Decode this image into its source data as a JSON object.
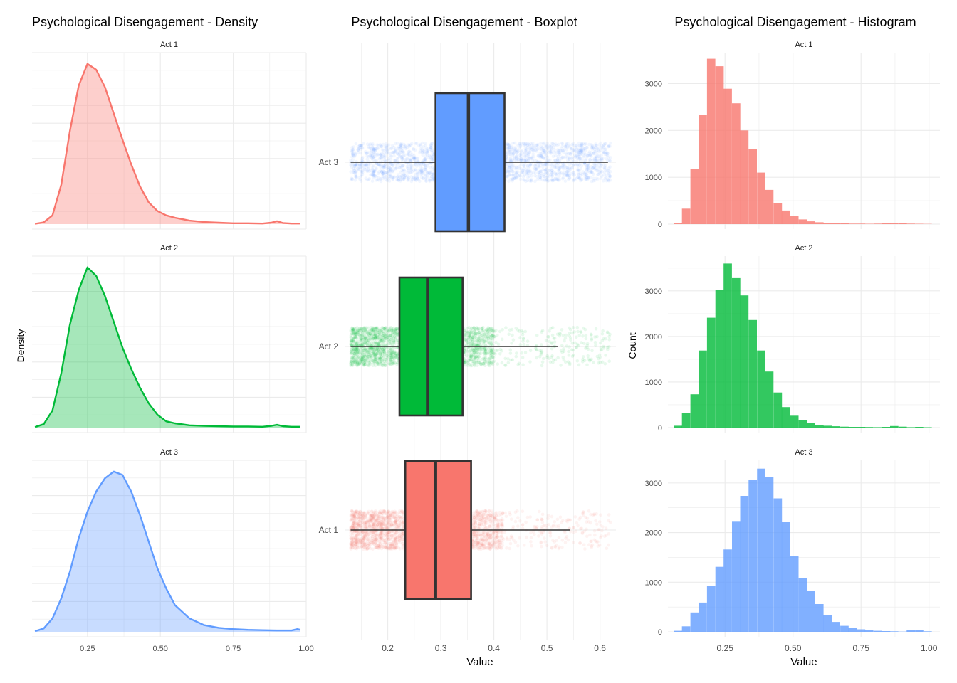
{
  "colors": {
    "act1": "#F8766D",
    "act2": "#00BA38",
    "act3": "#619CFF",
    "grid": "#EBEBEB",
    "text": "#000000",
    "tick_text": "#4D4D4D",
    "box_outline": "#333333"
  },
  "chart_data": [
    {
      "type": "area",
      "title": "Psychological Disengagement - Density",
      "xlabel": "",
      "ylabel": "Density",
      "xlim": [
        0.06,
        1.0
      ],
      "x_ticks": [
        0.25,
        0.5,
        0.75,
        1.0
      ],
      "x_tick_labels": [
        "0.25",
        "0.50",
        "0.75",
        "1.00"
      ],
      "y_tick_labels_shown": false,
      "facets": [
        {
          "label": "Act 1",
          "color_key": "act1",
          "x": [
            0.07,
            0.1,
            0.13,
            0.16,
            0.19,
            0.22,
            0.25,
            0.28,
            0.31,
            0.34,
            0.37,
            0.4,
            0.43,
            0.46,
            0.49,
            0.52,
            0.55,
            0.6,
            0.65,
            0.7,
            0.75,
            0.8,
            0.85,
            0.88,
            0.9,
            0.92,
            0.95,
            0.98
          ],
          "y": [
            0.01,
            0.06,
            0.3,
            1.35,
            3.2,
            4.75,
            5.5,
            5.3,
            4.7,
            3.8,
            2.9,
            2.05,
            1.3,
            0.75,
            0.45,
            0.3,
            0.22,
            0.12,
            0.07,
            0.05,
            0.03,
            0.03,
            0.02,
            0.05,
            0.1,
            0.04,
            0.02,
            0.02
          ]
        },
        {
          "label": "Act 2",
          "color_key": "act2",
          "x": [
            0.07,
            0.1,
            0.13,
            0.16,
            0.19,
            0.22,
            0.25,
            0.28,
            0.31,
            0.34,
            0.37,
            0.4,
            0.43,
            0.46,
            0.49,
            0.52,
            0.55,
            0.6,
            0.65,
            0.7,
            0.75,
            0.8,
            0.85,
            0.88,
            0.9,
            0.92,
            0.95,
            0.98
          ],
          "y": [
            0.02,
            0.12,
            0.6,
            1.9,
            3.6,
            4.8,
            5.6,
            5.3,
            4.6,
            3.7,
            2.8,
            2.05,
            1.4,
            0.85,
            0.45,
            0.22,
            0.15,
            0.08,
            0.06,
            0.05,
            0.04,
            0.04,
            0.03,
            0.06,
            0.1,
            0.05,
            0.03,
            0.03
          ]
        },
        {
          "label": "Act 3",
          "color_key": "act3",
          "x": [
            0.07,
            0.1,
            0.13,
            0.16,
            0.19,
            0.22,
            0.25,
            0.28,
            0.31,
            0.34,
            0.37,
            0.4,
            0.43,
            0.46,
            0.49,
            0.52,
            0.55,
            0.6,
            0.65,
            0.7,
            0.75,
            0.8,
            0.85,
            0.9,
            0.95,
            0.97,
            0.98
          ],
          "y": [
            0.02,
            0.1,
            0.4,
            1.0,
            1.8,
            2.8,
            3.6,
            4.2,
            4.6,
            4.8,
            4.7,
            4.2,
            3.5,
            2.7,
            1.9,
            1.3,
            0.8,
            0.4,
            0.2,
            0.12,
            0.08,
            0.06,
            0.05,
            0.04,
            0.04,
            0.08,
            0.06
          ]
        }
      ]
    },
    {
      "type": "boxplot",
      "title": "Psychological Disengagement - Boxplot",
      "xlabel": "Value",
      "ylabel": "",
      "xlim": [
        0.12,
        0.63
      ],
      "x_ticks": [
        0.2,
        0.3,
        0.4,
        0.5,
        0.6
      ],
      "x_tick_labels": [
        "0.2",
        "0.3",
        "0.4",
        "0.5",
        "0.6"
      ],
      "categories": [
        "Act 3",
        "Act 2",
        "Act 1"
      ],
      "boxes": [
        {
          "label": "Act 3",
          "color_key": "act3",
          "whisker_low": 0.13,
          "q1": 0.29,
          "median": 0.352,
          "q3": 0.42,
          "whisker_high": 0.615,
          "jitter_low": 0.13,
          "jitter_high": 0.62,
          "jitter_density": "uniform"
        },
        {
          "label": "Act 2",
          "color_key": "act2",
          "whisker_low": 0.13,
          "q1": 0.222,
          "median": 0.275,
          "q3": 0.341,
          "whisker_high": 0.52,
          "jitter_low": 0.13,
          "jitter_high": 0.62,
          "jitter_density": "skewed"
        },
        {
          "label": "Act 1",
          "color_key": "act1",
          "whisker_low": 0.13,
          "q1": 0.233,
          "median": 0.29,
          "q3": 0.357,
          "whisker_high": 0.543,
          "jitter_low": 0.13,
          "jitter_high": 0.62,
          "jitter_density": "skewed"
        }
      ]
    },
    {
      "type": "bar",
      "title": "Psychological Disengagement - Histogram",
      "xlabel": "Value",
      "ylabel": "Count",
      "xlim": [
        0.0,
        1.05
      ],
      "x_ticks": [
        0.25,
        0.5,
        0.75,
        1.0
      ],
      "x_tick_labels": [
        "0.25",
        "0.50",
        "0.75",
        "1.00"
      ],
      "bin_width": 0.0306,
      "facets": [
        {
          "label": "Act 1",
          "color_key": "act1",
          "ylim": [
            0,
            3600
          ],
          "y_ticks": [
            0,
            1000,
            2000,
            3000
          ],
          "y_tick_labels": [
            "0",
            "1000",
            "2000",
            "3000"
          ],
          "bin_centers": [
            0.077,
            0.107,
            0.138,
            0.168,
            0.199,
            0.23,
            0.26,
            0.291,
            0.321,
            0.352,
            0.383,
            0.413,
            0.444,
            0.474,
            0.505,
            0.536,
            0.566,
            0.597,
            0.627,
            0.658,
            0.689,
            0.719,
            0.75,
            0.78,
            0.811,
            0.842,
            0.872,
            0.903,
            0.933,
            0.964,
            0.995
          ],
          "counts": [
            20,
            330,
            1180,
            2330,
            3530,
            3370,
            2890,
            2580,
            2000,
            1610,
            1100,
            730,
            450,
            290,
            170,
            100,
            60,
            40,
            30,
            20,
            15,
            10,
            10,
            8,
            10,
            15,
            30,
            20,
            10,
            8,
            5
          ]
        },
        {
          "label": "Act 2",
          "color_key": "act2",
          "ylim": [
            0,
            3700
          ],
          "y_ticks": [
            0,
            1000,
            2000,
            3000
          ],
          "y_tick_labels": [
            "0",
            "1000",
            "2000",
            "3000"
          ],
          "bin_centers": [
            0.077,
            0.107,
            0.138,
            0.168,
            0.199,
            0.23,
            0.26,
            0.291,
            0.321,
            0.352,
            0.383,
            0.413,
            0.444,
            0.474,
            0.505,
            0.536,
            0.566,
            0.597,
            0.627,
            0.658,
            0.689,
            0.719,
            0.75,
            0.78,
            0.811,
            0.842,
            0.872,
            0.903,
            0.933,
            0.964,
            0.995
          ],
          "counts": [
            40,
            320,
            730,
            1690,
            2410,
            3020,
            3600,
            3280,
            2900,
            2360,
            1690,
            1230,
            770,
            450,
            260,
            170,
            100,
            60,
            40,
            30,
            20,
            15,
            15,
            12,
            10,
            15,
            35,
            20,
            10,
            15,
            8
          ]
        },
        {
          "label": "Act 3",
          "color_key": "act3",
          "ylim": [
            0,
            3400
          ],
          "y_ticks": [
            0,
            1000,
            2000,
            3000
          ],
          "y_tick_labels": [
            "0",
            "1000",
            "2000",
            "3000"
          ],
          "bin_centers": [
            0.077,
            0.107,
            0.138,
            0.168,
            0.199,
            0.23,
            0.26,
            0.291,
            0.321,
            0.352,
            0.383,
            0.413,
            0.444,
            0.474,
            0.505,
            0.536,
            0.566,
            0.597,
            0.627,
            0.658,
            0.689,
            0.719,
            0.75,
            0.78,
            0.811,
            0.842,
            0.872,
            0.903,
            0.933,
            0.964,
            0.995
          ],
          "counts": [
            20,
            110,
            390,
            590,
            920,
            1310,
            1660,
            2220,
            2740,
            3060,
            3290,
            3120,
            2690,
            2210,
            1520,
            1090,
            820,
            560,
            330,
            200,
            120,
            80,
            50,
            30,
            20,
            15,
            10,
            5,
            40,
            30,
            10
          ]
        }
      ]
    }
  ]
}
